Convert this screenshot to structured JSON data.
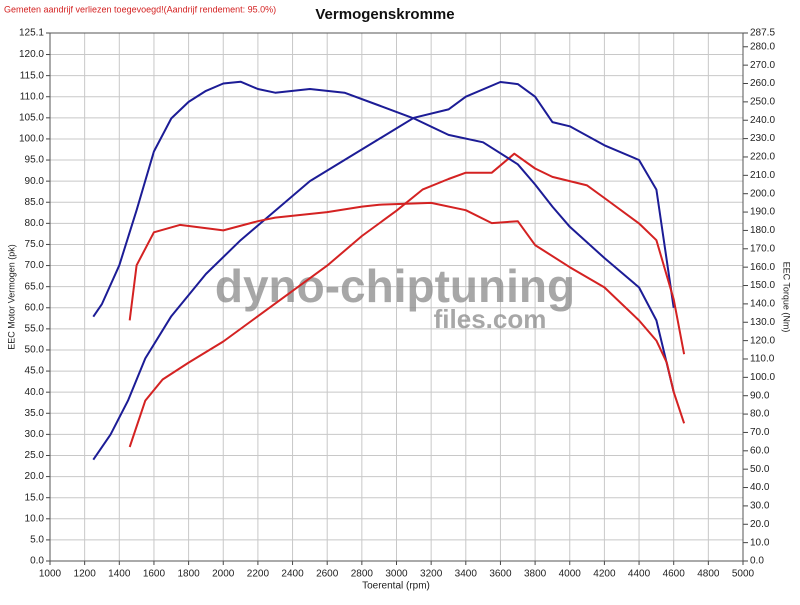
{
  "chart_data": {
    "type": "line",
    "note_header": "Gemeten aandrijf verliezen toegevoegd!(Aandrijf rendement: 95.0%)",
    "title": "Vermogenskromme",
    "x_label": "Toerental (rpm)",
    "y_label": "EEC Motor Vermogen (pk)",
    "y2_label": "EEC Torque (Nm)",
    "watermark": [
      "dyno-chiptuning",
      "files.com"
    ],
    "grid": true,
    "xlim": [
      1000,
      5000
    ],
    "xticks": [
      1000,
      1200,
      1400,
      1600,
      1800,
      2000,
      2200,
      2400,
      2600,
      2800,
      3000,
      3200,
      3400,
      3600,
      3800,
      4000,
      4200,
      4400,
      4600,
      4800,
      5000
    ],
    "ylim": [
      0,
      125.1
    ],
    "yticks": [
      {
        "value": 0,
        "label": "0.0"
      },
      {
        "value": 5,
        "label": "5.0"
      },
      {
        "value": 10,
        "label": "10.0"
      },
      {
        "value": 15,
        "label": "15.0"
      },
      {
        "value": 20,
        "label": "20.0"
      },
      {
        "value": 25,
        "label": "25.0"
      },
      {
        "value": 30,
        "label": "30.0"
      },
      {
        "value": 35,
        "label": "35.0"
      },
      {
        "value": 40,
        "label": "40.0"
      },
      {
        "value": 45,
        "label": "45.0"
      },
      {
        "value": 50,
        "label": "50.0"
      },
      {
        "value": 55,
        "label": "55.0"
      },
      {
        "value": 60,
        "label": "60.0"
      },
      {
        "value": 65,
        "label": "65.0"
      },
      {
        "value": 70,
        "label": "70.0"
      },
      {
        "value": 75,
        "label": "75.0"
      },
      {
        "value": 80,
        "label": "80.0"
      },
      {
        "value": 85,
        "label": "85.0"
      },
      {
        "value": 90,
        "label": "90.0"
      },
      {
        "value": 95,
        "label": "95.0"
      },
      {
        "value": 100,
        "label": "100.0"
      },
      {
        "value": 105,
        "label": "105.0"
      },
      {
        "value": 110,
        "label": "110.0"
      },
      {
        "value": 115,
        "label": "115.0"
      },
      {
        "value": 120,
        "label": "120.0"
      },
      125.1
    ],
    "y2lim": [
      0,
      287.5
    ],
    "y2ticks": [
      {
        "value": 0,
        "label": "0.0"
      },
      {
        "value": 10,
        "label": "10.0"
      },
      {
        "value": 20,
        "label": "20.0"
      },
      {
        "value": 30,
        "label": "30.0"
      },
      {
        "value": 40,
        "label": "40.0"
      },
      {
        "value": 50,
        "label": "50.0"
      },
      {
        "value": 60,
        "label": "60.0"
      },
      {
        "value": 70,
        "label": "70.0"
      },
      {
        "value": 80,
        "label": "80.0"
      },
      {
        "value": 90,
        "label": "90.0"
      },
      {
        "value": 100,
        "label": "100.0"
      },
      {
        "value": 110,
        "label": "110.0"
      },
      {
        "value": 120,
        "label": "120.0"
      },
      {
        "value": 130,
        "label": "130.0"
      },
      {
        "value": 140,
        "label": "140.0"
      },
      {
        "value": 150,
        "label": "150.0"
      },
      {
        "value": 160,
        "label": "160.0"
      },
      {
        "value": 170,
        "label": "170.0"
      },
      {
        "value": 180,
        "label": "180.0"
      },
      {
        "value": 190,
        "label": "190.0"
      },
      {
        "value": 200,
        "label": "200.0"
      },
      {
        "value": 210,
        "label": "210.0"
      },
      {
        "value": 220,
        "label": "220.0"
      },
      {
        "value": 230,
        "label": "230.0"
      },
      {
        "value": 240,
        "label": "240.0"
      },
      {
        "value": 250,
        "label": "250.0"
      },
      {
        "value": 260,
        "label": "260.0"
      },
      {
        "value": 270,
        "label": "270.0"
      },
      {
        "value": 280,
        "label": "280.0"
      },
      287.5
    ],
    "series": [
      {
        "color": "#1c1c96",
        "axis": "y",
        "x": [
          1250,
          1350,
          1450,
          1550,
          1700,
          1900,
          2100,
          2300,
          2500,
          2700,
          2900,
          3100,
          3300,
          3400,
          3600,
          3700,
          3800,
          3900,
          4000,
          4200,
          4400,
          4500,
          4600
        ],
        "values": [
          24,
          30,
          38,
          48,
          58,
          68,
          76,
          83,
          90,
          95,
          100,
          105,
          107,
          110,
          113.5,
          113,
          110,
          104,
          103,
          98.5,
          95,
          88,
          60
        ]
      },
      {
        "color": "#d42222",
        "axis": "y",
        "x": [
          1460,
          1550,
          1650,
          1800,
          2000,
          2200,
          2400,
          2600,
          2800,
          3000,
          3150,
          3300,
          3400,
          3550,
          3680,
          3800,
          3900,
          4100,
          4200,
          4400,
          4500,
          4600,
          4660
        ],
        "values": [
          27,
          38,
          43,
          47,
          52,
          58,
          64,
          70,
          77,
          83,
          88,
          90.5,
          92,
          92,
          96.5,
          93,
          91,
          89,
          86,
          80,
          76,
          62,
          49
        ]
      },
      {
        "color": "#1c1c96",
        "axis": "y2",
        "x": [
          1250,
          1300,
          1400,
          1500,
          1600,
          1700,
          1800,
          1900,
          2000,
          2100,
          2200,
          2300,
          2500,
          2700,
          2900,
          3100,
          3300,
          3500,
          3700,
          3800,
          3900,
          4000,
          4200,
          4400,
          4500,
          4600
        ],
        "values": [
          133,
          140,
          161,
          191,
          223,
          241,
          250,
          256,
          260,
          261,
          257,
          255,
          257,
          255,
          248,
          241,
          232,
          228,
          216,
          205,
          193,
          182,
          165,
          149,
          131,
          92
        ]
      },
      {
        "color": "#d42222",
        "axis": "y2",
        "x": [
          1460,
          1500,
          1600,
          1750,
          2000,
          2200,
          2300,
          2600,
          2800,
          2900,
          3200,
          3400,
          3550,
          3700,
          3800,
          4000,
          4200,
          4400,
          4500,
          4560,
          4600,
          4660
        ],
        "values": [
          131,
          161,
          179,
          183,
          180,
          185,
          187,
          190,
          193,
          194,
          195,
          191,
          184,
          185,
          172,
          160,
          149,
          131,
          120,
          108,
          92,
          75
        ]
      }
    ]
  }
}
